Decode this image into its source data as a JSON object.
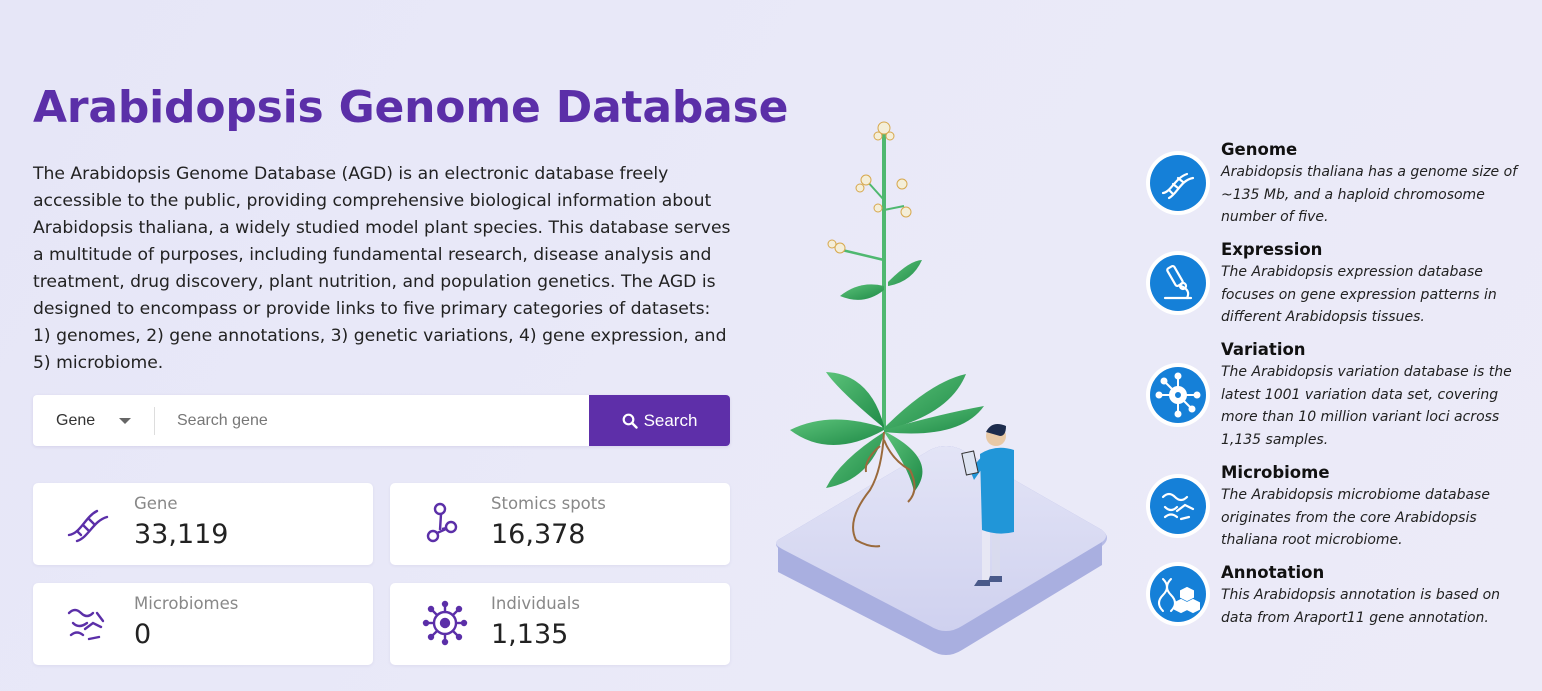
{
  "header": {
    "title": "Arabidopsis Genome Database",
    "description": "The Arabidopsis Genome Database (AGD) is an electronic database freely accessible to the public, providing comprehensive biological information about Arabidopsis thaliana, a widely studied model plant species. This database serves a multitude of purposes, including fundamental research, disease analysis and treatment, drug discovery, plant nutrition, and population genetics. The AGD is designed to encompass or provide links to five primary categories of datasets: 1) genomes, 2) gene annotations, 3) genetic variations, 4) gene expression, and 5) microbiome."
  },
  "search": {
    "type_selected": "Gene",
    "placeholder": "Search gene",
    "value": "",
    "button_label": "Search"
  },
  "stats": [
    {
      "label": "Gene",
      "value": "33,119",
      "icon": "dna-icon"
    },
    {
      "label": "Stomics spots",
      "value": "16,378",
      "icon": "molecule-icon"
    },
    {
      "label": "Microbiomes",
      "value": "0",
      "icon": "bacteria-icon"
    },
    {
      "label": "Individuals",
      "value": "1,135",
      "icon": "virus-icon"
    }
  ],
  "features": [
    {
      "name": "Genome",
      "text": "Arabidopsis thaliana has a genome size of ~135 Mb, and a haploid chromosome number of five.",
      "icon": "dna-icon"
    },
    {
      "name": "Expression",
      "text": "The Arabidopsis expression database focuses on gene expression patterns in different Arabidopsis tissues.",
      "icon": "microscope-icon"
    },
    {
      "name": "Variation",
      "text": "The Arabidopsis variation database is the latest 1001 variation data set, covering more than 10 million variant loci across 1,135 samples.",
      "icon": "network-icon"
    },
    {
      "name": "Microbiome",
      "text": "The Arabidopsis microbiome database originates from the core Arabidopsis thaliana root microbiome.",
      "icon": "bacteria-icon"
    },
    {
      "name": "Annotation",
      "text": "This Arabidopsis annotation is based on data from Araport11 gene annotation.",
      "icon": "annotation-icon"
    }
  ],
  "colors": {
    "brand": "#5e2fa9",
    "feature_icon": "#1580d8"
  }
}
